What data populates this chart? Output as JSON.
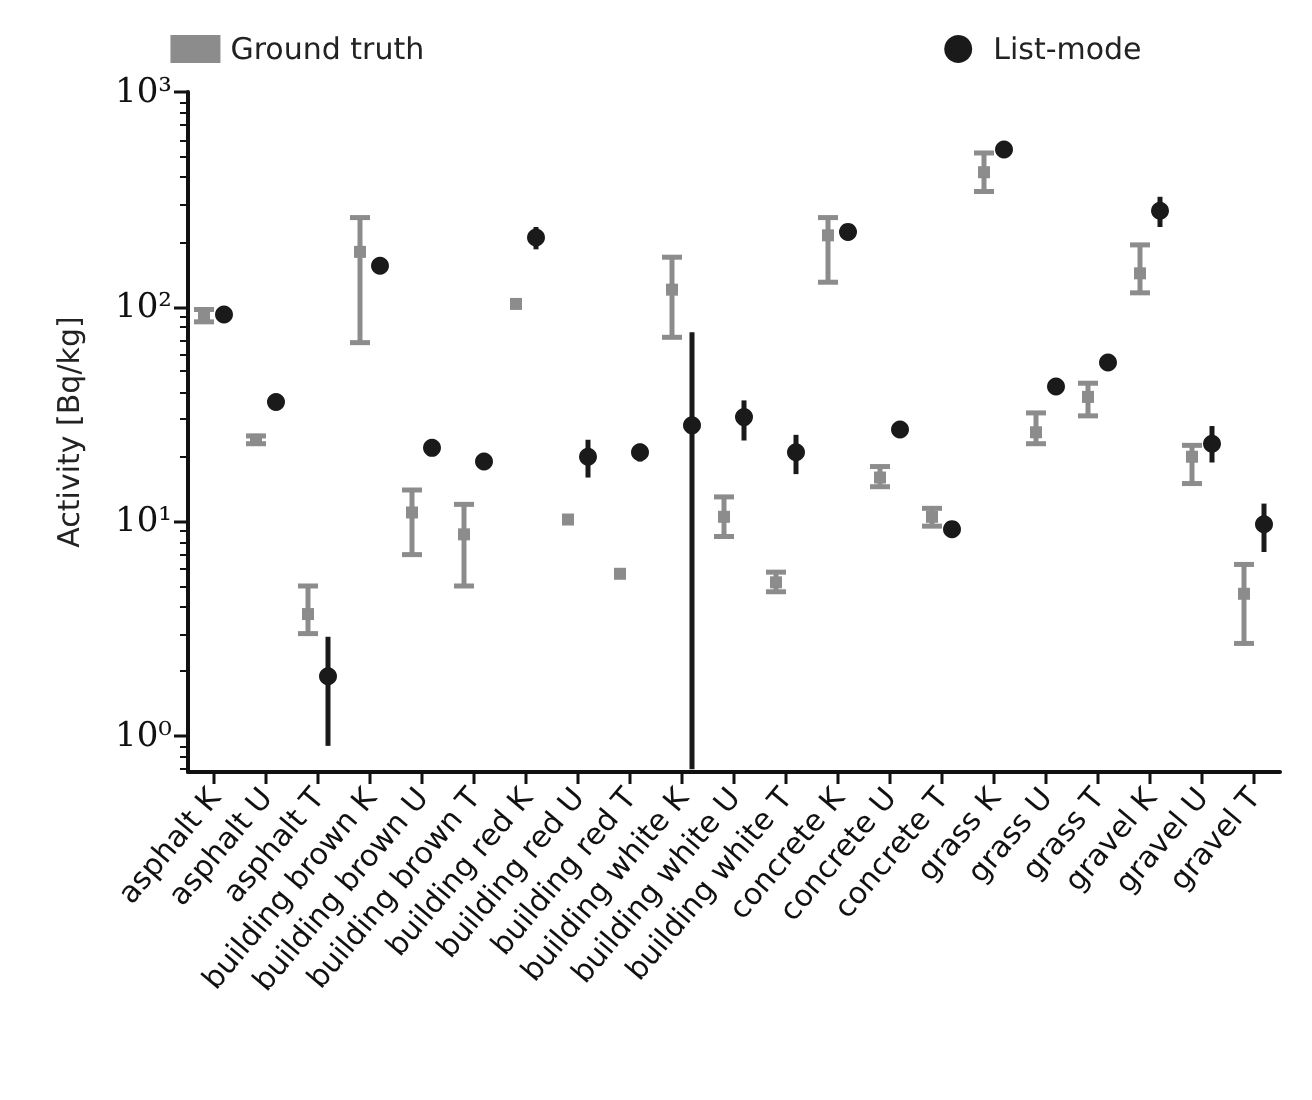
{
  "chart_data": {
    "type": "scatter",
    "ylabel": "Activity [Bq/kg]",
    "categories": [
      "asphalt K",
      "asphalt U",
      "asphalt T",
      "building brown K",
      "building brown U",
      "building brown T",
      "building red K",
      "building red U",
      "building red T",
      "building white K",
      "building white U",
      "building white T",
      "concrete K",
      "concrete U",
      "concrete T",
      "grass K",
      "grass U",
      "grass T",
      "gravel K",
      "gravel U",
      "gravel T"
    ],
    "series": [
      {
        "name": "Ground truth",
        "color": "#8c8c8c",
        "marker": "square",
        "values": [
          90,
          24,
          3.7,
          180,
          11,
          8.7,
          103,
          10.2,
          5.7,
          120,
          10.5,
          5.2,
          215,
          16,
          10.5,
          423,
          26,
          38,
          143,
          20,
          4.6
        ],
        "errors": [
          [
            85,
            97
          ],
          [
            23,
            25
          ],
          [
            3.0,
            5.0
          ],
          [
            68,
            260
          ],
          [
            7,
            14
          ],
          [
            5,
            12
          ],
          null,
          null,
          null,
          [
            72,
            170
          ],
          [
            8.5,
            13
          ],
          [
            4.7,
            5.8
          ],
          [
            130,
            260
          ],
          [
            14.5,
            18
          ],
          [
            9.5,
            11.5
          ],
          [
            344,
            520
          ],
          [
            23,
            32
          ],
          [
            31,
            44
          ],
          [
            116,
            194
          ],
          [
            15,
            22.6
          ],
          [
            2.7,
            6.3
          ]
        ]
      },
      {
        "name": "List-mode",
        "color": "#1a1a1a",
        "marker": "circle",
        "values": [
          92,
          36,
          1.9,
          155,
          22,
          19,
          210,
          20,
          21,
          28,
          30.6,
          21,
          223,
          26.8,
          9.2,
          540,
          42.5,
          55,
          280,
          23,
          9.7
        ],
        "errors": [
          [
            85,
            100
          ],
          [
            35,
            37
          ],
          [
            0.9,
            2.9
          ],
          [
            145,
            165
          ],
          [
            20.5,
            23.5
          ],
          [
            18,
            20
          ],
          [
            185,
            235
          ],
          [
            16,
            24
          ],
          [
            19,
            23
          ],
          [
            0.7,
            76
          ],
          [
            23.8,
            36.6
          ],
          [
            16.6,
            25.3
          ],
          [
            210,
            235
          ],
          [
            25.5,
            28
          ],
          [
            8.5,
            10
          ],
          [
            520,
            560
          ],
          [
            40.5,
            44.5
          ],
          [
            52,
            58
          ],
          [
            235,
            325
          ],
          [
            18.8,
            27.8
          ],
          [
            7.2,
            12.1
          ]
        ]
      }
    ],
    "log": "y",
    "ylim": [
      0.68,
      1000
    ],
    "yticks": [
      {
        "value": 1,
        "label": "10⁰"
      },
      {
        "value": 10,
        "label": "10¹"
      },
      {
        "value": 100,
        "label": "10²"
      },
      {
        "value": 1000,
        "label": "10³"
      }
    ],
    "legend": "top",
    "grid": false
  }
}
